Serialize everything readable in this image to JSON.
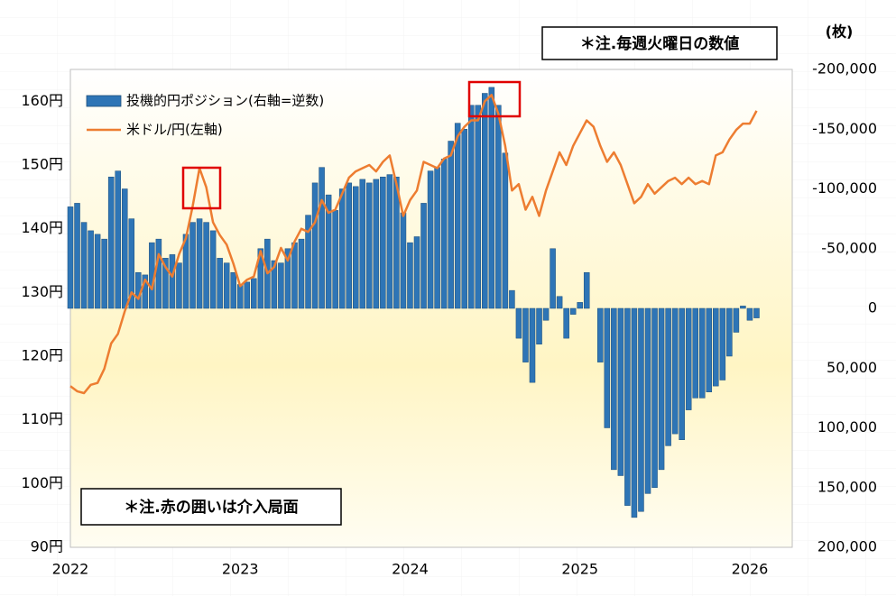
{
  "chart_data": {
    "type": "combo",
    "annotations": [
      "＊注.毎週火曜日の数値",
      "＊注.赤の囲いは介入局面"
    ],
    "y2label": "(枚)",
    "x": [
      2022.0,
      2022.04,
      2022.08,
      2022.12,
      2022.16,
      2022.2,
      2022.24,
      2022.28,
      2022.32,
      2022.36,
      2022.4,
      2022.44,
      2022.48,
      2022.52,
      2022.56,
      2022.6,
      2022.64,
      2022.68,
      2022.72,
      2022.76,
      2022.8,
      2022.84,
      2022.88,
      2022.92,
      2022.96,
      2023.0,
      2023.04,
      2023.08,
      2023.12,
      2023.16,
      2023.2,
      2023.24,
      2023.28,
      2023.32,
      2023.36,
      2023.4,
      2023.44,
      2023.48,
      2023.52,
      2023.56,
      2023.6,
      2023.64,
      2023.68,
      2023.72,
      2023.76,
      2023.8,
      2023.84,
      2023.88,
      2023.92,
      2023.96,
      2024.0,
      2024.04,
      2024.08,
      2024.12,
      2024.16,
      2024.2,
      2024.24,
      2024.28,
      2024.32,
      2024.36,
      2024.4,
      2024.44,
      2024.48,
      2024.52,
      2024.56,
      2024.6,
      2024.64,
      2024.68,
      2024.72,
      2024.76,
      2024.8,
      2024.84,
      2024.88,
      2024.92,
      2024.96,
      2025.0,
      2025.04,
      2025.08,
      2025.12,
      2025.16,
      2025.2,
      2025.24,
      2025.28,
      2025.32,
      2025.36,
      2025.4,
      2025.44,
      2025.48,
      2025.52,
      2025.56,
      2025.6,
      2025.64,
      2025.68,
      2025.72,
      2025.76,
      2025.8,
      2025.84,
      2025.88,
      2025.92,
      2025.96,
      2026.0,
      2026.04
    ],
    "xlim": [
      2022,
      2026.25
    ],
    "xticks": [
      2022,
      2023,
      2024,
      2025,
      2026
    ],
    "ylim": [
      90,
      165
    ],
    "yticks": [
      {
        "value": 90,
        "label": "90円"
      },
      {
        "value": 100,
        "label": "100円"
      },
      {
        "value": 110,
        "label": "110円"
      },
      {
        "value": 120,
        "label": "120円"
      },
      {
        "value": 130,
        "label": "130円"
      },
      {
        "value": 140,
        "label": "140円"
      },
      {
        "value": 150,
        "label": "150円"
      },
      {
        "value": 160,
        "label": "160円"
      }
    ],
    "y2lim": [
      200000,
      -200000
    ],
    "y2ticks": [
      {
        "value": -200000,
        "label": "-200,000"
      },
      {
        "value": -150000,
        "label": "-150,000"
      },
      {
        "value": -100000,
        "label": "-100,000"
      },
      {
        "value": -50000,
        "label": "-50,000"
      },
      0,
      {
        "value": 50000,
        "label": "50,000"
      },
      {
        "value": 100000,
        "label": "100,000"
      },
      {
        "value": 150000,
        "label": "150,000"
      },
      {
        "value": 200000,
        "label": "200,000"
      }
    ],
    "y2_negative_color": "#ee0000",
    "legend": "top-left",
    "series": [
      {
        "name": "投機的円ポジション(右軸=逆数)",
        "type": "bar",
        "axis": "y2",
        "color": "#2e75b6",
        "values": [
          -85000,
          -88000,
          -72000,
          -65000,
          -62000,
          -58000,
          -110000,
          -115000,
          -100000,
          -75000,
          -30000,
          -28000,
          -55000,
          -58000,
          -42000,
          -45000,
          -38000,
          -62000,
          -72000,
          -75000,
          -72000,
          -65000,
          -42000,
          -38000,
          -30000,
          -20000,
          -22000,
          -25000,
          -50000,
          -58000,
          -40000,
          -38000,
          -50000,
          -55000,
          -58000,
          -78000,
          -105000,
          -118000,
          -95000,
          -82000,
          -100000,
          -105000,
          -102000,
          -108000,
          -105000,
          -108000,
          -110000,
          -112000,
          -110000,
          -80000,
          -55000,
          -60000,
          -88000,
          -115000,
          -118000,
          -125000,
          -140000,
          -155000,
          -150000,
          -170000,
          -170000,
          -180000,
          -185000,
          -170000,
          -130000,
          -15000,
          25000,
          45000,
          62000,
          30000,
          10000,
          -50000,
          -10000,
          25000,
          5000,
          -5000,
          -30000,
          0,
          45000,
          100000,
          135000,
          140000,
          165000,
          175000,
          170000,
          155000,
          150000,
          135000,
          115000,
          105000,
          110000,
          85000,
          75000,
          75000,
          70000,
          65000,
          60000,
          40000,
          20000,
          -2000,
          10000,
          8000
        ]
      },
      {
        "name": "米ドル/円(左軸)",
        "type": "line",
        "axis": "y",
        "color": "#ed7d31",
        "values": [
          115.3,
          114.5,
          114.2,
          115.5,
          115.8,
          118,
          122,
          123.5,
          127,
          130,
          129,
          132,
          130.5,
          136,
          134,
          132.5,
          136,
          138.5,
          143.5,
          149.5,
          146.5,
          141,
          139,
          137.5,
          134.5,
          131,
          132,
          132.5,
          136.5,
          133,
          134,
          137,
          135,
          138,
          140,
          139.5,
          141,
          144.5,
          142.5,
          143,
          145.5,
          148,
          149,
          149.5,
          150,
          149,
          150.5,
          151.5,
          147,
          142,
          144.5,
          146,
          150.5,
          150,
          149.5,
          151,
          151.5,
          154.5,
          156,
          157,
          157,
          160,
          161,
          158,
          153,
          146,
          147,
          143,
          145,
          142,
          146,
          149,
          152,
          150,
          153,
          155,
          157,
          156,
          153,
          150.5,
          152,
          150,
          147,
          144,
          145,
          147,
          145.5,
          146.5,
          147.5,
          148,
          147,
          148,
          147,
          147.5,
          147,
          151.5,
          152,
          154,
          155.5,
          156.5,
          156.5,
          158.5
        ]
      }
    ]
  }
}
